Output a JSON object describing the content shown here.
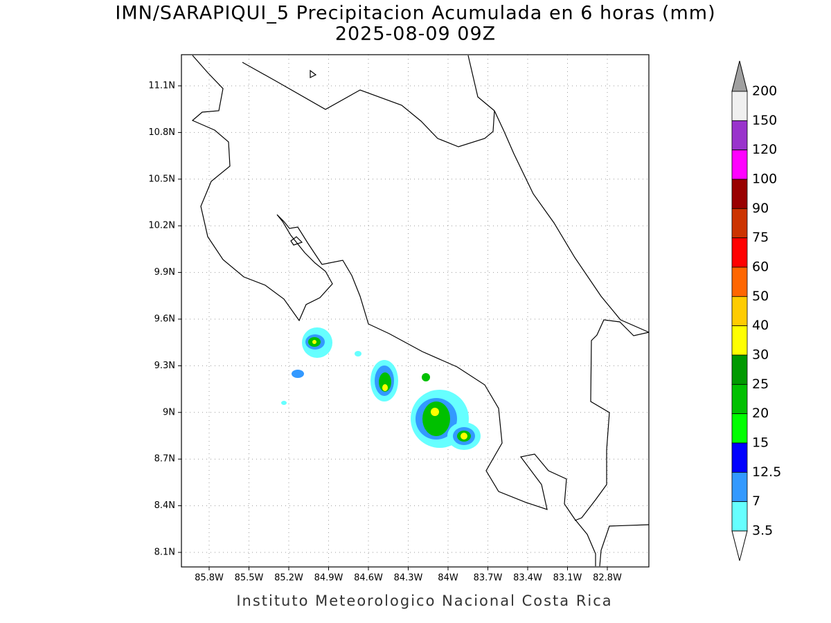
{
  "header": {
    "title": "IMN/SARAPIQUI_5 Precipitacion Acumulada en 6 horas (mm)",
    "subtitle": "2025-08-09 09Z"
  },
  "map": {
    "lat_labels": [
      "11.1N",
      "10.8N",
      "10.5N",
      "10.2N",
      "9.9N",
      "9.6N",
      "9.3N",
      "9N",
      "8.7N",
      "8.4N",
      "8.1N"
    ],
    "lon_labels": [
      "85.8W",
      "85.5W",
      "85.2W",
      "84.9W",
      "84.6W",
      "84.3W",
      "84W",
      "83.7W",
      "83.4W",
      "83.1W",
      "82.8W"
    ]
  },
  "colorbar": {
    "labels": [
      200,
      150,
      120,
      100,
      90,
      75,
      60,
      50,
      40,
      30,
      25,
      20,
      15,
      12.5,
      7,
      3.5
    ],
    "colors": [
      "#f0f0f0",
      "#9933cc",
      "#ff00ff",
      "#990000",
      "#cc3300",
      "#ff0000",
      "#ff6600",
      "#ffcc00",
      "#ffff00",
      "#009900",
      "#00c000",
      "#00ff00",
      "#0000ff",
      "#3399ff",
      "#66ffff"
    ],
    "top_color": "#a0a0a0",
    "bottom_color": "#ffffff"
  },
  "footer": "Instituto Meteorologico Nacional Costa Rica"
}
